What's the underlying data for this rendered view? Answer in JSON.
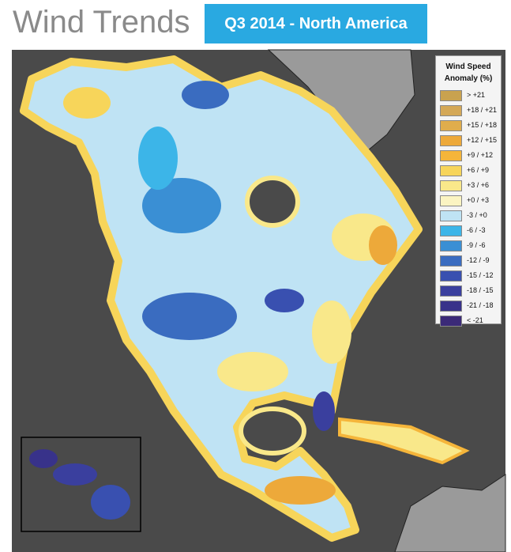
{
  "header": {
    "title": "Wind Trends",
    "badge": "Q3 2014 - North America"
  },
  "legend": {
    "title": "Wind Speed Anomaly (%)",
    "items": [
      {
        "label": "> +21",
        "color": "#c9a24f"
      },
      {
        "label": "+18 / +21",
        "color": "#d4a857"
      },
      {
        "label": "+15 / +18",
        "color": "#e0ad4c"
      },
      {
        "label": "+12 / +15",
        "color": "#eda93a"
      },
      {
        "label": "+9 / +12",
        "color": "#f5b53a"
      },
      {
        "label": "+6 / +9",
        "color": "#f7d55a"
      },
      {
        "label": "+3 / +6",
        "color": "#f9e88a"
      },
      {
        "label": "+0 / +3",
        "color": "#fbf4c2"
      },
      {
        "label": "-3 / +0",
        "color": "#bfe3f4"
      },
      {
        "label": "-6 / -3",
        "color": "#3cb5e8"
      },
      {
        "label": "-9 / -6",
        "color": "#3a8fd4"
      },
      {
        "label": "-12 / -9",
        "color": "#3a6cc0"
      },
      {
        "label": "-15 / -12",
        "color": "#3950b0"
      },
      {
        "label": "-18 / -15",
        "color": "#3a3f9e"
      },
      {
        "label": "-21 / -18",
        "color": "#38328a"
      },
      {
        "label": "< -21",
        "color": "#3b2a78"
      }
    ]
  }
}
